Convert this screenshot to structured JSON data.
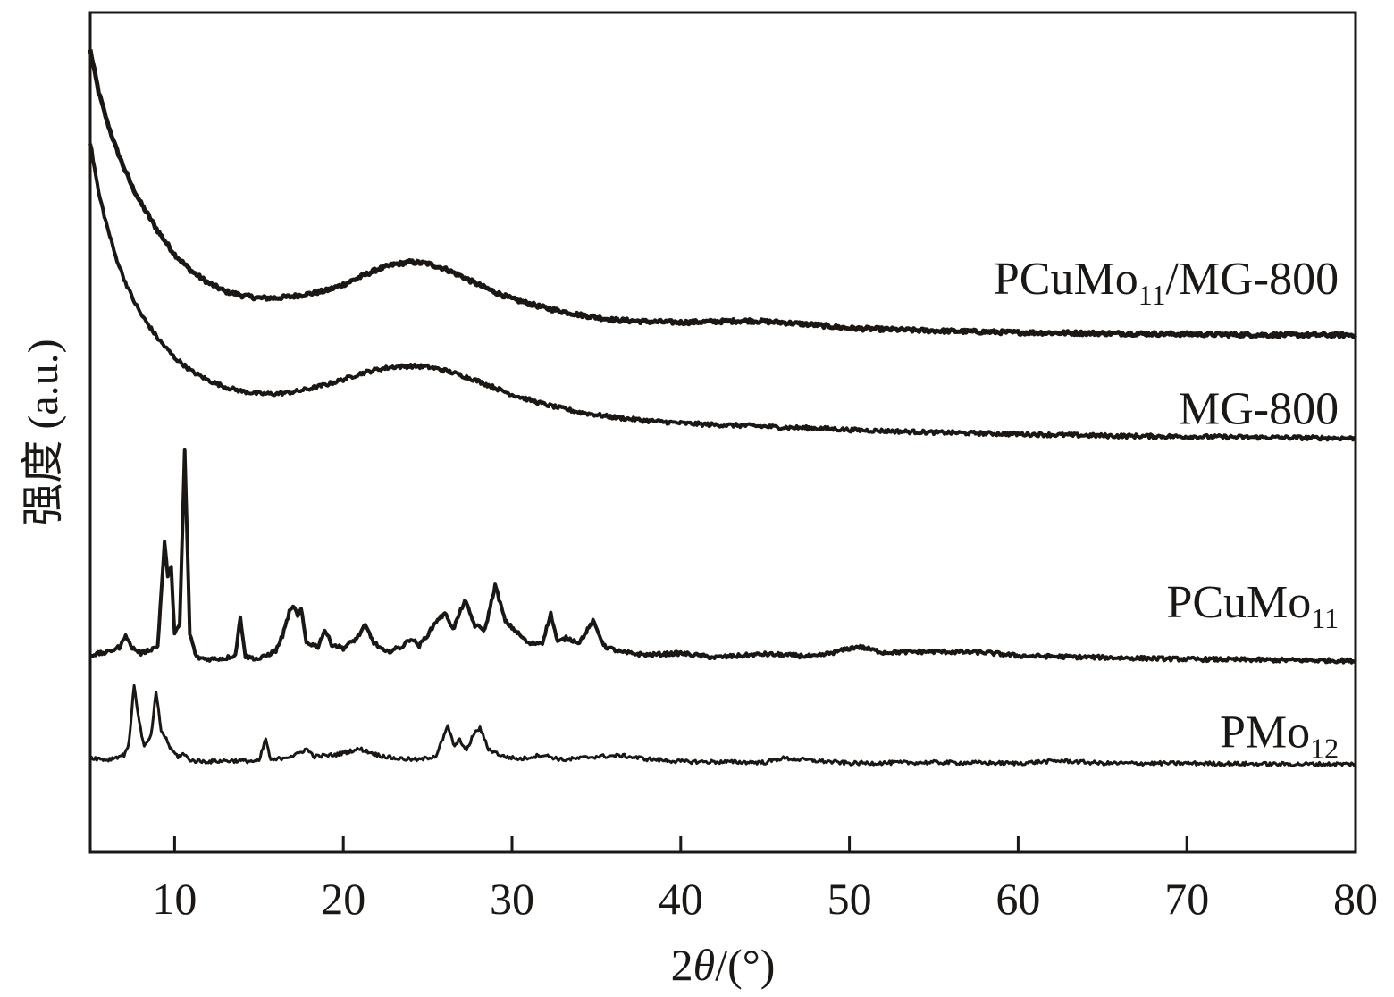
{
  "chart_data": {
    "type": "line",
    "title": "",
    "xlabel": "2θ/(°)",
    "xlabel_parts": [
      "2",
      "θ",
      "/(°)"
    ],
    "ylabel": "强度 (a.u.)",
    "xlim": [
      5,
      80
    ],
    "ylim": [
      0,
      100
    ],
    "xticks": [
      10,
      20,
      30,
      40,
      50,
      60,
      70,
      80
    ],
    "yticks_shown": false,
    "grid": false,
    "legend": "none (series labelled on the right side of each curve)",
    "line_color": "#1a1714",
    "series": [
      {
        "name": "PCuMo11/MG-800",
        "label_parts": [
          [
            "PCuMo",
            false
          ],
          [
            "11",
            true
          ],
          [
            "/MG-800",
            false
          ]
        ],
        "label_at": [
          79,
          66.5
        ],
        "stroke_width": 5,
        "x": [
          5,
          5.5,
          6,
          6.5,
          7,
          7.5,
          8,
          9,
          10,
          11,
          12,
          13,
          14,
          15,
          16,
          17,
          18,
          19,
          20,
          21,
          22,
          23,
          24,
          25,
          26,
          27,
          28,
          29,
          30,
          32,
          34,
          36,
          38,
          40,
          42,
          44,
          46,
          48,
          50,
          55,
          60,
          65,
          70,
          75,
          80
        ],
        "y": [
          95.5,
          90.5,
          87,
          84,
          81.5,
          79.2,
          77.3,
          74.0,
          71.2,
          69.2,
          67.8,
          66.8,
          66.3,
          66.0,
          66.0,
          66.2,
          66.5,
          66.9,
          67.6,
          68.5,
          69.4,
          70.0,
          70.3,
          70.1,
          69.5,
          68.6,
          67.6,
          66.7,
          65.9,
          64.8,
          64.0,
          63.4,
          63.2,
          63.1,
          63.2,
          63.3,
          63.1,
          62.8,
          62.4,
          62.1,
          61.9,
          61.8,
          61.7,
          61.6,
          61.6
        ]
      },
      {
        "name": "MG-800",
        "label_parts": [
          [
            "MG-800",
            false
          ]
        ],
        "label_at": [
          79,
          51
        ],
        "stroke_width": 4,
        "x": [
          5,
          5.5,
          6,
          6.5,
          7,
          7.5,
          8,
          9,
          10,
          11,
          12,
          13,
          14,
          15,
          16,
          17,
          18,
          19,
          20,
          21,
          22,
          23,
          24,
          25,
          26,
          27,
          28,
          29,
          30,
          32,
          34,
          36,
          38,
          40,
          42,
          44,
          46,
          48,
          50,
          55,
          60,
          65,
          70,
          75,
          80
        ],
        "y": [
          84.5,
          78.5,
          74.5,
          71.0,
          68.3,
          66.0,
          64.1,
          61.2,
          58.9,
          57.3,
          56.2,
          55.4,
          54.9,
          54.6,
          54.6,
          54.8,
          55.2,
          55.7,
          56.3,
          57.0,
          57.5,
          57.8,
          57.9,
          57.8,
          57.4,
          56.8,
          56.1,
          55.3,
          54.5,
          53.3,
          52.4,
          51.8,
          51.4,
          51.1,
          50.9,
          50.8,
          50.6,
          50.5,
          50.3,
          50.0,
          49.8,
          49.6,
          49.5,
          49.4,
          49.3
        ]
      },
      {
        "name": "PCuMo11",
        "label_parts": [
          [
            "PCuMo",
            false
          ],
          [
            "11",
            true
          ]
        ],
        "label_at": [
          79,
          28
        ],
        "stroke_width": 4,
        "x": [
          5,
          6,
          6.8,
          7.1,
          7.4,
          8,
          9,
          9.4,
          9.6,
          9.8,
          10.0,
          10.3,
          10.6,
          10.9,
          11.3,
          12,
          13,
          13.6,
          13.9,
          14.2,
          15,
          16,
          16.4,
          16.8,
          17.1,
          17.3,
          17.5,
          17.8,
          18.5,
          18.9,
          19.3,
          20,
          20.8,
          21.3,
          21.8,
          22.5,
          23.5,
          24.0,
          24.5,
          25.1,
          25.6,
          26.1,
          26.5,
          27.2,
          27.8,
          28.4,
          29.0,
          29.6,
          30.3,
          31.0,
          31.8,
          32.3,
          32.7,
          33.2,
          34.0,
          34.8,
          35.5,
          36.5,
          38,
          40,
          42,
          45,
          48,
          50.5,
          52,
          55,
          58,
          60,
          65,
          70,
          75,
          80
        ],
        "y": [
          23.5,
          23.8,
          24.5,
          26.0,
          24.5,
          23.7,
          24.5,
          36.8,
          33.0,
          33.8,
          26.2,
          27.0,
          47.8,
          26.0,
          23.2,
          23.0,
          23.1,
          23.5,
          28.0,
          23.3,
          23.0,
          24.0,
          25.8,
          28.6,
          29.3,
          28.0,
          29.0,
          25.0,
          24.5,
          26.5,
          24.8,
          24.3,
          25.5,
          27.0,
          25.0,
          23.8,
          24.5,
          25.5,
          24.6,
          26.2,
          27.8,
          28.4,
          26.5,
          30.0,
          27.0,
          26.5,
          31.8,
          27.5,
          26.2,
          24.8,
          25.0,
          28.4,
          25.0,
          25.5,
          25.0,
          27.5,
          24.5,
          23.8,
          23.5,
          23.7,
          23.2,
          23.6,
          23.3,
          24.5,
          23.8,
          23.9,
          23.8,
          23.4,
          23.2,
          23.0,
          22.9,
          22.8
        ]
      },
      {
        "name": "PMo12",
        "label_parts": [
          [
            "PMo",
            false
          ],
          [
            "12",
            true
          ]
        ],
        "label_at": [
          79,
          12.5
        ],
        "stroke_width": 3,
        "x": [
          5,
          6,
          7,
          7.3,
          7.6,
          7.9,
          8.2,
          8.6,
          8.9,
          9.2,
          9.5,
          9.8,
          10.2,
          10.5,
          11,
          12,
          13,
          14,
          15,
          15.4,
          15.7,
          16.5,
          17.2,
          17.8,
          18.3,
          19.5,
          20.5,
          21.0,
          22,
          23,
          24.5,
          25.5,
          26.2,
          26.6,
          26.9,
          27.3,
          27.7,
          28.1,
          28.6,
          29.5,
          30.5,
          31.8,
          33,
          35,
          36.5,
          38,
          40,
          45,
          46,
          50,
          55,
          60,
          62.5,
          65,
          70,
          75,
          80
        ],
        "y": [
          11.3,
          11.0,
          11.6,
          13.0,
          20.0,
          15.5,
          12.5,
          13.8,
          19.0,
          14.5,
          13.5,
          12.2,
          11.4,
          11.7,
          10.9,
          10.8,
          10.9,
          10.9,
          10.8,
          13.5,
          10.9,
          11.3,
          11.6,
          12.3,
          11.4,
          11.6,
          12.1,
          12.3,
          11.6,
          11.2,
          11.0,
          11.5,
          15.0,
          12.5,
          13.5,
          12.0,
          14.0,
          14.8,
          12.3,
          11.4,
          11.1,
          11.6,
          11.0,
          11.4,
          11.5,
          11.1,
          10.8,
          10.7,
          11.2,
          10.6,
          10.7,
          10.6,
          10.9,
          10.6,
          10.6,
          10.5,
          10.5
        ]
      }
    ]
  }
}
